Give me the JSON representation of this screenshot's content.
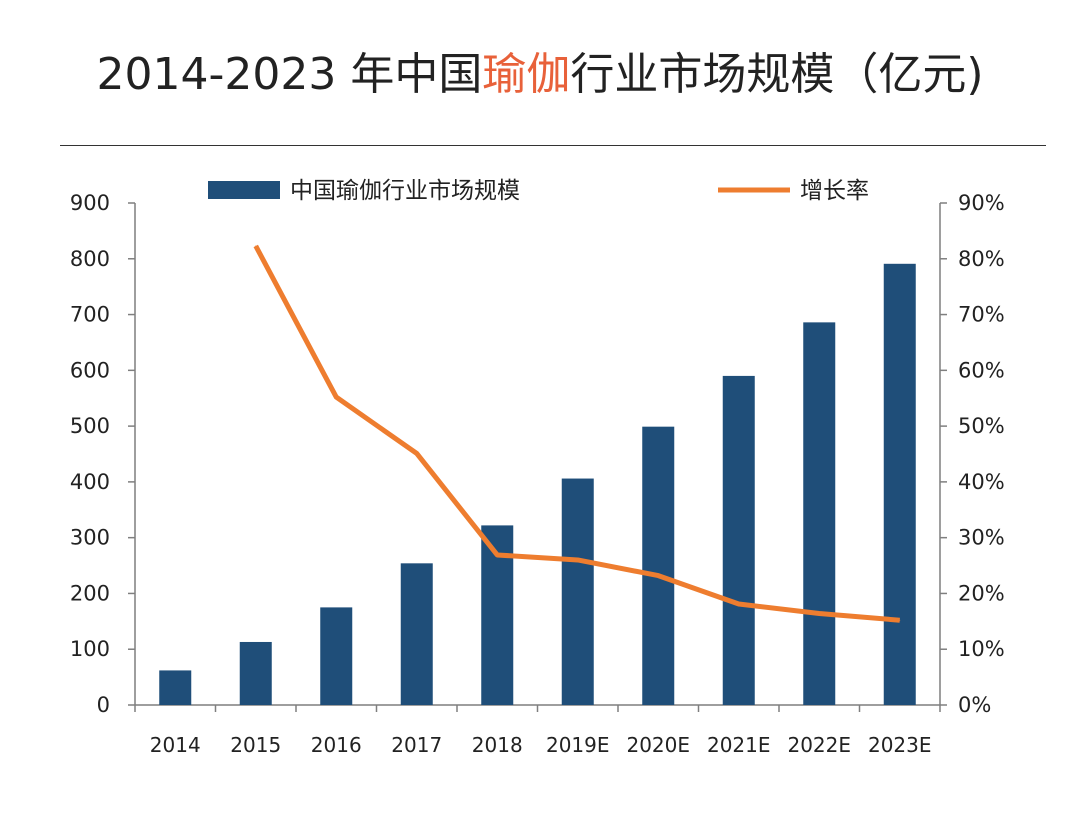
{
  "title": {
    "prefix": "2014-2023 年中国",
    "highlight": "瑜伽",
    "suffix": "行业市场规模（亿元)"
  },
  "colors": {
    "bar": "#1f4e79",
    "line": "#ee7d2f",
    "title_highlight": "#e8613a",
    "axis": "#7f7f7f",
    "text": "#222222"
  },
  "chart_data": {
    "type": "bar",
    "categories": [
      "2014",
      "2015",
      "2016",
      "2017",
      "2018",
      "2019E",
      "2020E",
      "2021E",
      "2022E",
      "2023E"
    ],
    "series": [
      {
        "name": "中国瑜伽行业市场规模",
        "type": "bar",
        "axis": "left",
        "values": [
          62,
          113,
          175,
          254,
          322,
          406,
          499,
          590,
          686,
          791
        ]
      },
      {
        "name": "增长率",
        "type": "line",
        "axis": "right",
        "values": [
          null,
          82.3,
          55.2,
          45.1,
          26.9,
          26.0,
          23.2,
          18.1,
          16.4,
          15.2
        ]
      }
    ],
    "y_left": {
      "ylim": [
        0,
        900
      ],
      "ticks": [
        "0",
        "100",
        "200",
        "300",
        "400",
        "500",
        "600",
        "700",
        "800",
        "900"
      ]
    },
    "y_right": {
      "ylim": [
        0,
        90
      ],
      "ticks": [
        "0%",
        "10%",
        "20%",
        "30%",
        "40%",
        "50%",
        "60%",
        "70%",
        "80%",
        "90%"
      ]
    },
    "legend": {
      "placement": "top",
      "items": [
        {
          "label": "中国瑜伽行业市场规模",
          "kind": "bar"
        },
        {
          "label": "增长率",
          "kind": "line"
        }
      ]
    },
    "grid": false
  }
}
